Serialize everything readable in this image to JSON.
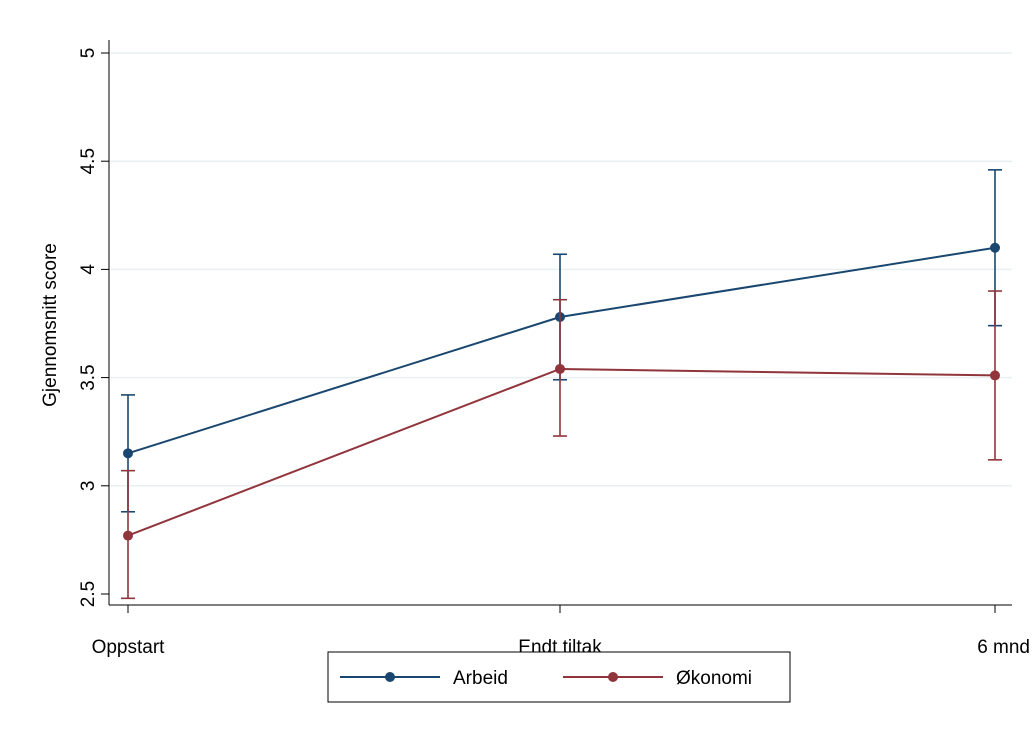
{
  "chart_data": {
    "type": "line",
    "title": "",
    "xlabel": "",
    "ylabel": "Gjennomsnitt score",
    "categories": [
      "Oppstart",
      "Endt tiltak",
      "6 mnd"
    ],
    "y_ticks": [
      "2.5",
      "3",
      "3.5",
      "4",
      "4.5",
      "5"
    ],
    "ylim": [
      2.5,
      5
    ],
    "grid": true,
    "legend_position": "bottom",
    "series": [
      {
        "name": "Arbeid",
        "color": "#1a476f",
        "values": [
          3.15,
          3.78,
          4.1
        ],
        "ci_low": [
          2.88,
          3.49,
          3.74
        ],
        "ci_high": [
          3.42,
          4.07,
          4.46
        ]
      },
      {
        "name": "Økonomi",
        "color": "#90353b",
        "values": [
          2.77,
          3.54,
          3.51
        ],
        "ci_low": [
          2.48,
          3.23,
          3.12
        ],
        "ci_high": [
          3.07,
          3.86,
          3.9
        ]
      }
    ]
  }
}
